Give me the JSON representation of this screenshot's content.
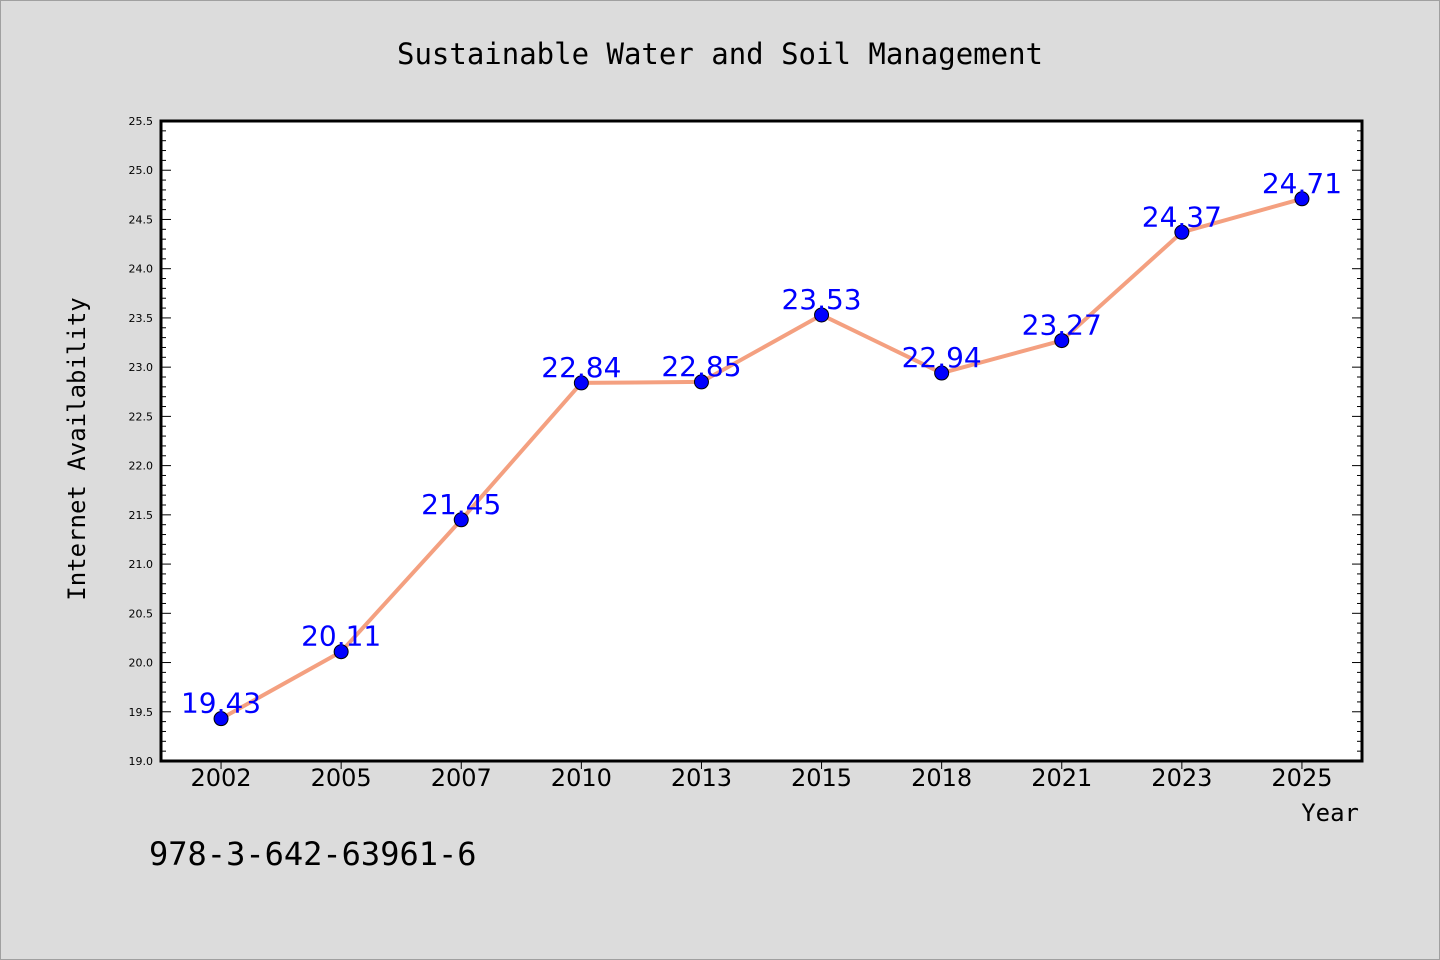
{
  "chart_data": {
    "type": "line",
    "title": "Sustainable Water and Soil Management",
    "xlabel": "Year",
    "ylabel": "Internet Availability",
    "categories": [
      "2002",
      "2005",
      "2007",
      "2010",
      "2013",
      "2015",
      "2018",
      "2021",
      "2023",
      "2025"
    ],
    "series": [
      {
        "values": [
          19.43,
          20.11,
          21.45,
          22.84,
          22.85,
          23.53,
          22.94,
          23.27,
          24.37,
          24.71
        ],
        "line_color": "#f4a080",
        "marker_color": "#0000ff"
      }
    ],
    "data_labels": [
      "19.43",
      "20.11",
      "21.45",
      "22.84",
      "22.85",
      "23.53",
      "22.94",
      "23.27",
      "24.37",
      "24.71"
    ],
    "ylim": [
      19.0,
      25.5
    ],
    "yticks": [
      "19.0",
      "19.5",
      "20.0",
      "20.5",
      "21.0",
      "21.5",
      "22.0",
      "22.5",
      "23.0",
      "23.5",
      "24.0",
      "24.5",
      "25.0",
      "25.5"
    ],
    "grid": false,
    "label_color": "#0000ff"
  },
  "footer": {
    "isbn": "978-3-642-63961-6"
  }
}
